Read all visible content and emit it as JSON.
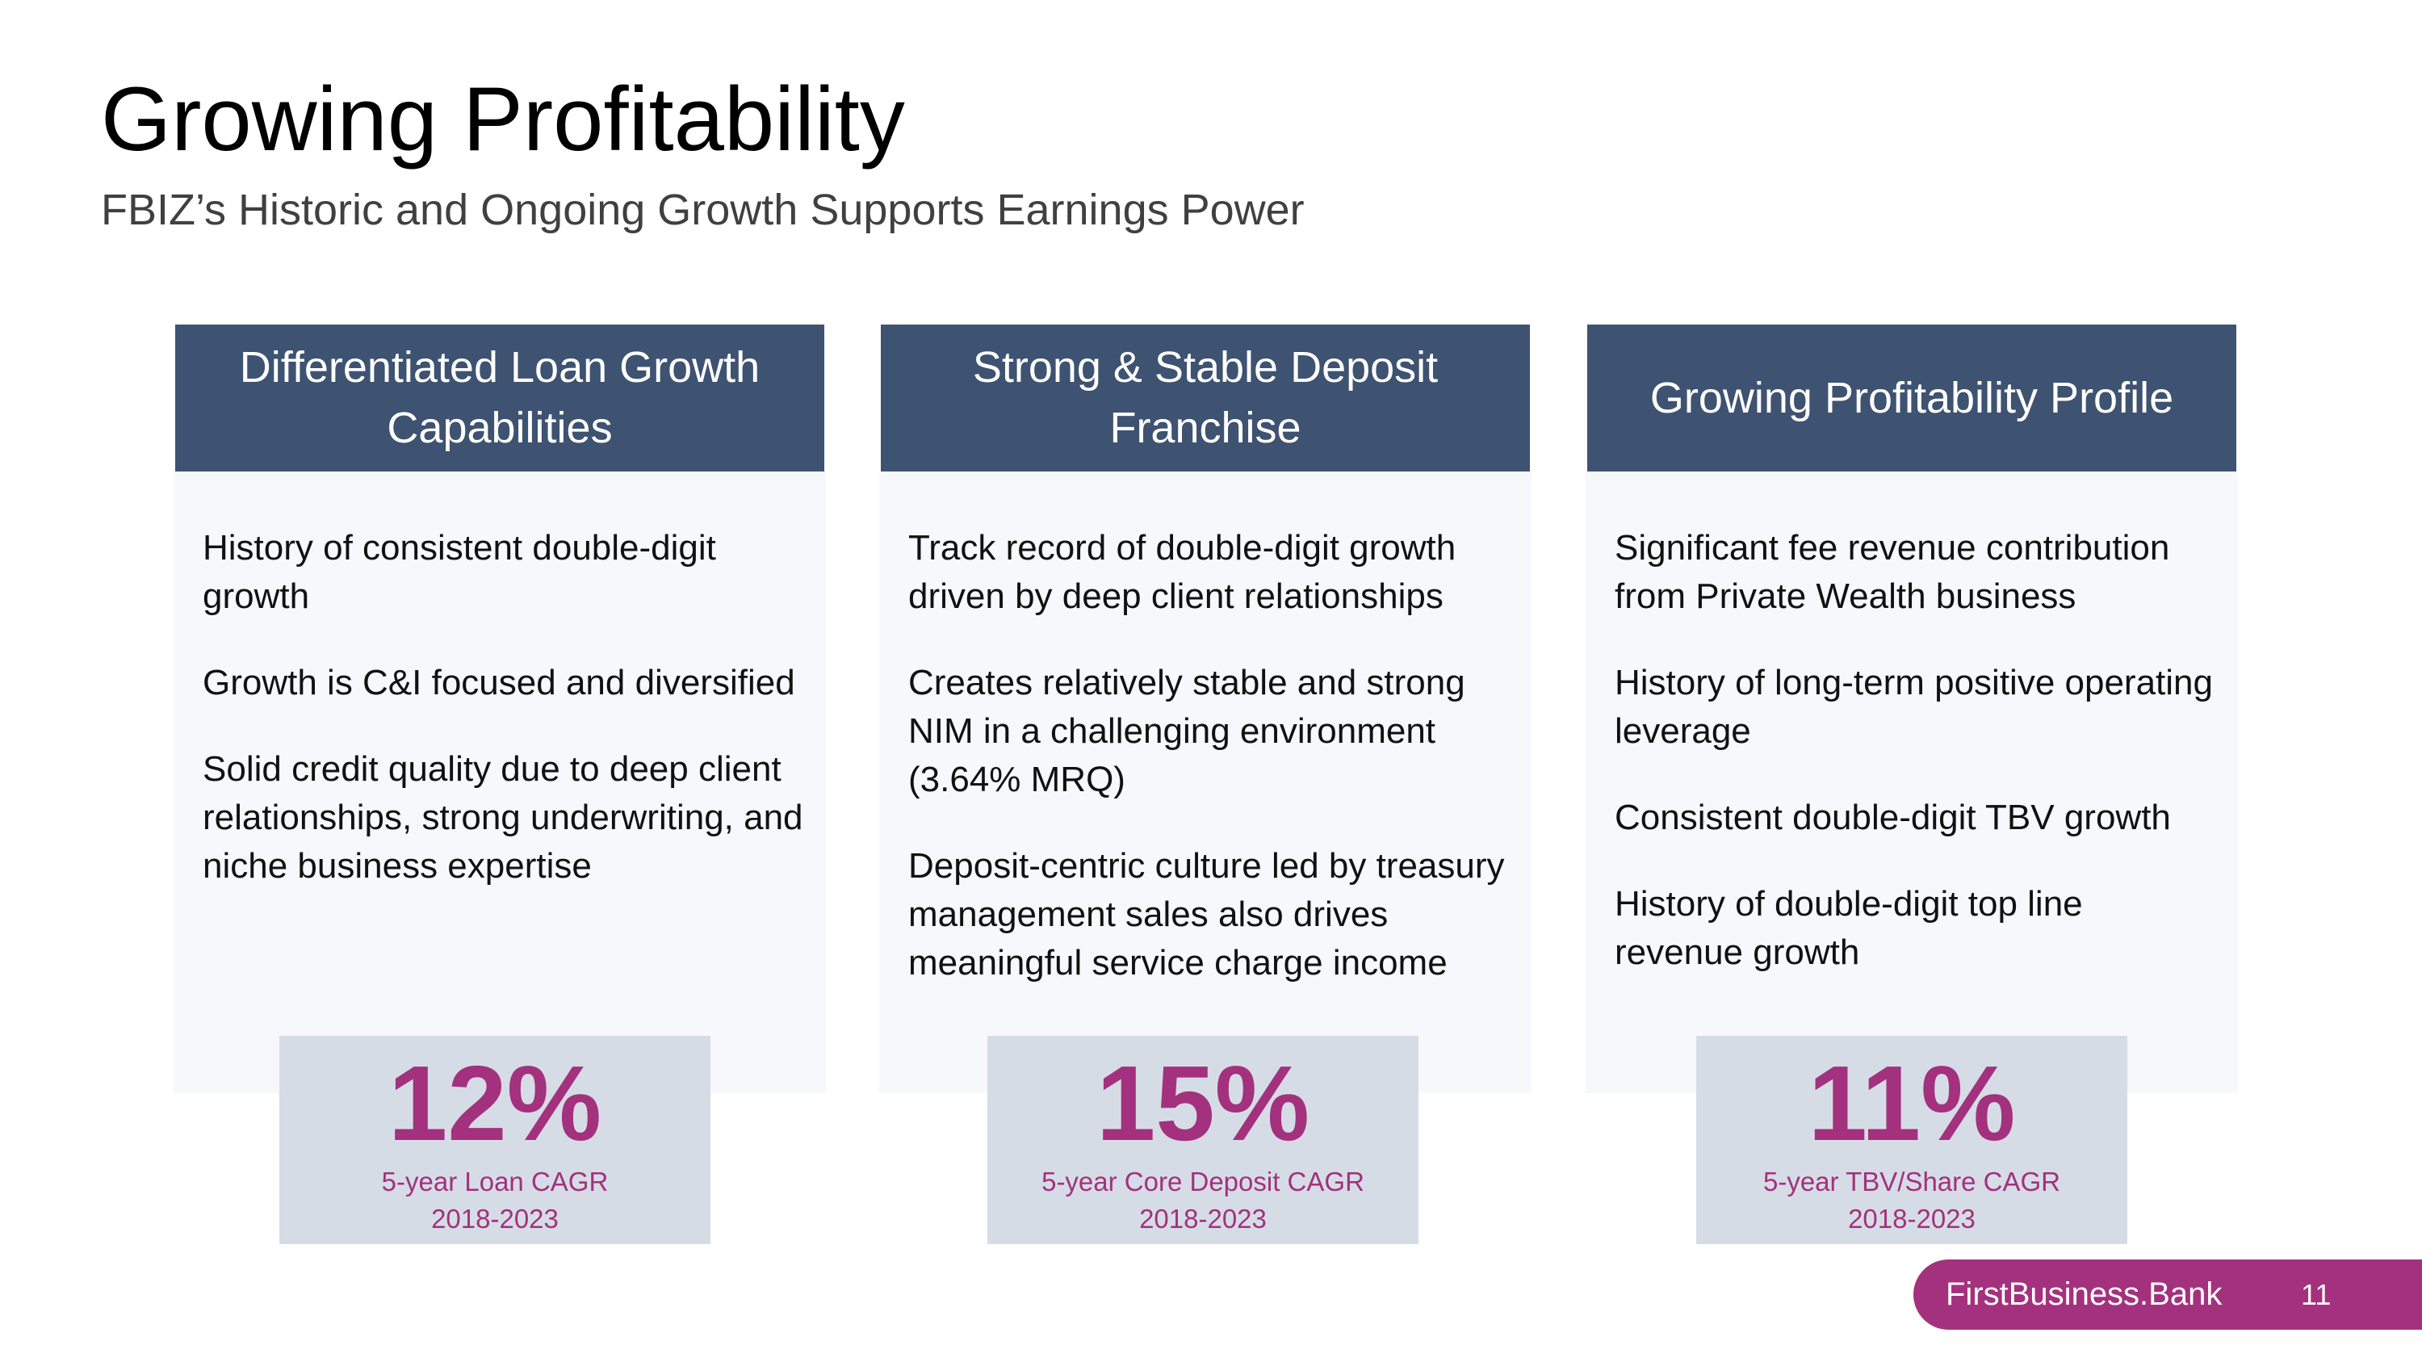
{
  "slide": {
    "title": "Growing Profitability",
    "subtitle": "FBIZ’s Historic and Ongoing Growth Supports Earnings Power"
  },
  "columns": [
    {
      "header": "Differentiated Loan Growth Capabilities",
      "bullets": [
        "History of consistent double-digit growth",
        "Growth is C&I focused and diversified",
        "Solid credit quality due to deep client relationships, strong underwriting, and niche business expertise"
      ],
      "stat": {
        "value": "12%",
        "label": "5-year Loan CAGR",
        "period": "2018-2023"
      }
    },
    {
      "header": "Strong & Stable Deposit Franchise",
      "bullets": [
        "Track record of double-digit growth driven by deep client relationships",
        "Creates relatively stable and strong NIM in a challenging environment (3.64% MRQ)",
        "Deposit-centric culture led by treasury management sales also drives meaningful service charge income"
      ],
      "stat": {
        "value": "15%",
        "label": "5-year Core Deposit CAGR",
        "period": "2018-2023"
      }
    },
    {
      "header": "Growing Profitability Profile",
      "bullets": [
        "Significant fee revenue contribution from Private Wealth business",
        "History of long-term positive operating leverage",
        "Consistent double-digit TBV growth",
        "History of double-digit top line revenue growth"
      ],
      "stat": {
        "value": "11%",
        "label": "5-year TBV/Share CAGR",
        "period": "2018-2023"
      }
    }
  ],
  "footer": {
    "brand": "FirstBusiness.Bank",
    "page_number": "11"
  },
  "colors": {
    "header_bg": "#3e5271",
    "accent": "#a3317e",
    "stat_bg": "#d6dce6",
    "panel_bg": "#f6f8fc"
  }
}
